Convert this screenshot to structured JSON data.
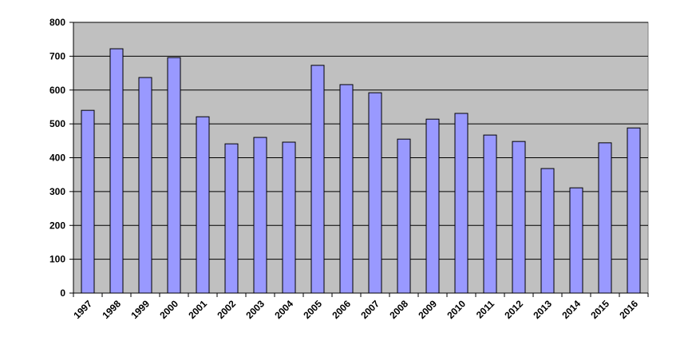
{
  "chart_data": {
    "type": "bar",
    "categories": [
      "1997",
      "1998",
      "1999",
      "2000",
      "2001",
      "2002",
      "2003",
      "2004",
      "2005",
      "2006",
      "2007",
      "2008",
      "2009",
      "2010",
      "2011",
      "2012",
      "2013",
      "2014",
      "2015",
      "2016"
    ],
    "values": [
      540,
      722,
      637,
      696,
      521,
      441,
      460,
      446,
      673,
      616,
      592,
      455,
      514,
      531,
      467,
      448,
      368,
      311,
      444,
      488
    ],
    "color": "#9999ff",
    "ylim": [
      0,
      800
    ],
    "yticks": [
      0,
      100,
      200,
      300,
      400,
      500,
      600,
      700,
      800
    ],
    "grid": true
  }
}
